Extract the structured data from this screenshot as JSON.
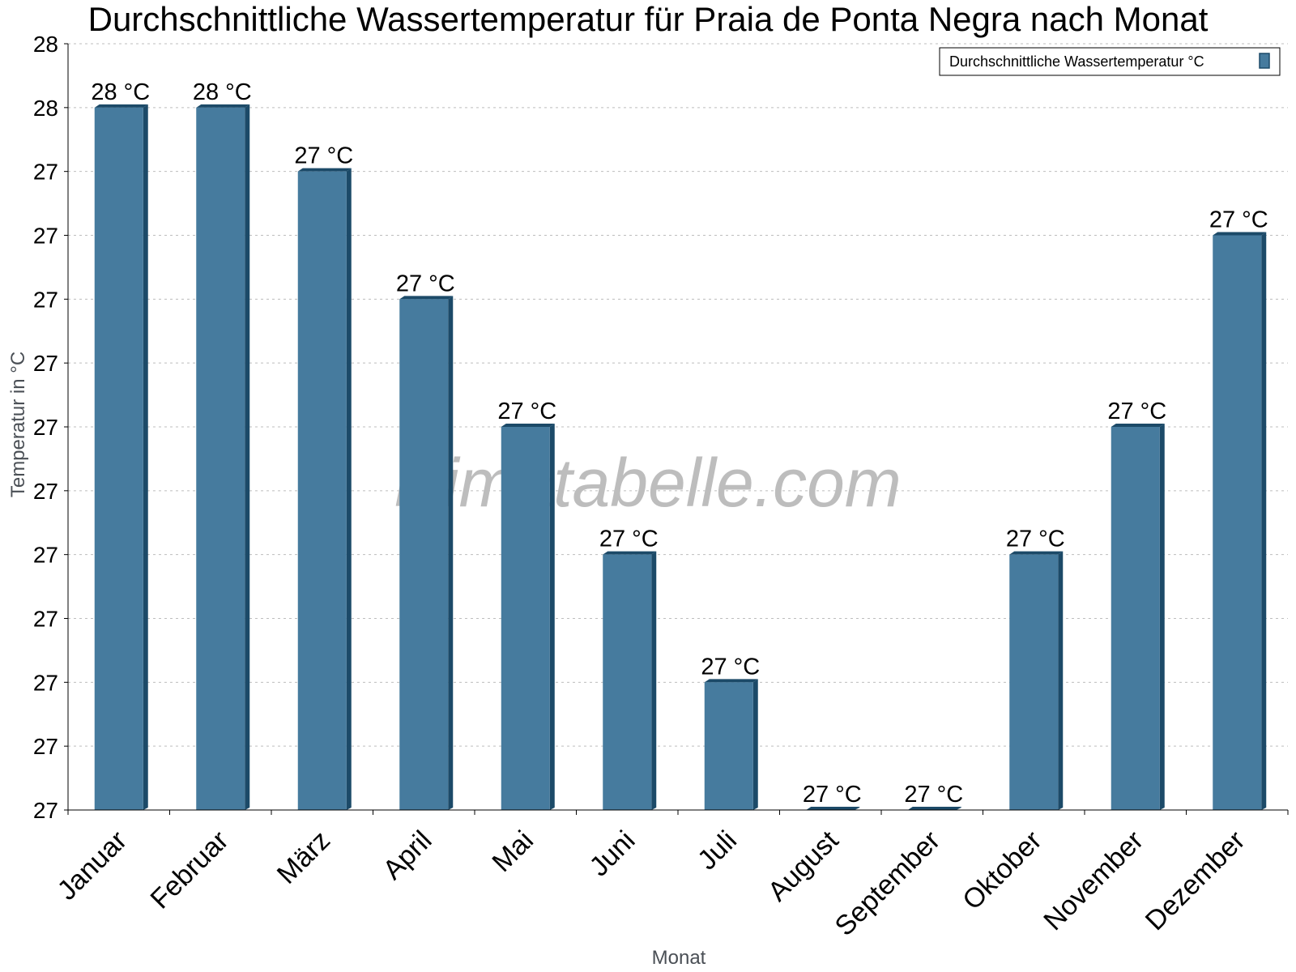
{
  "chart_data": {
    "type": "bar",
    "title": "Durchschnittliche Wassertemperatur für Praia de Ponta Negra nach Monat",
    "xlabel": "Monat",
    "ylabel": "Temperatur in °C",
    "categories": [
      "Januar",
      "Februar",
      "März",
      "April",
      "Mai",
      "Juni",
      "Juli",
      "August",
      "September",
      "Oktober",
      "November",
      "Dezember"
    ],
    "series": [
      {
        "name": "Durchschnittliche Wassertemperatur °C",
        "values": [
          27.6,
          27.6,
          27.5,
          27.3,
          27.1,
          26.9,
          26.7,
          26.5,
          26.5,
          26.9,
          27.1,
          27.4
        ],
        "labels": [
          "28 °C",
          "28 °C",
          "27 °C",
          "27 °C",
          "27 °C",
          "27 °C",
          "27 °C",
          "27 °C",
          "27 °C",
          "27 °C",
          "27 °C",
          "27 °C"
        ]
      }
    ],
    "ylim": [
      26.5,
      27.7
    ],
    "yticks": [
      26.5,
      26.6,
      26.7,
      26.8,
      26.9,
      27.0,
      27.1,
      27.2,
      27.3,
      27.4,
      27.5,
      27.6,
      27.7
    ],
    "ytick_labels": [
      "27",
      "27",
      "27",
      "27",
      "27",
      "27",
      "27",
      "27",
      "27",
      "27",
      "27",
      "28",
      "28"
    ],
    "grid": true,
    "legend_position": "top-right",
    "bar_color": "#467b9e",
    "bar_shade_color": "#1c4a68"
  },
  "watermark": "klimatabelle.com"
}
